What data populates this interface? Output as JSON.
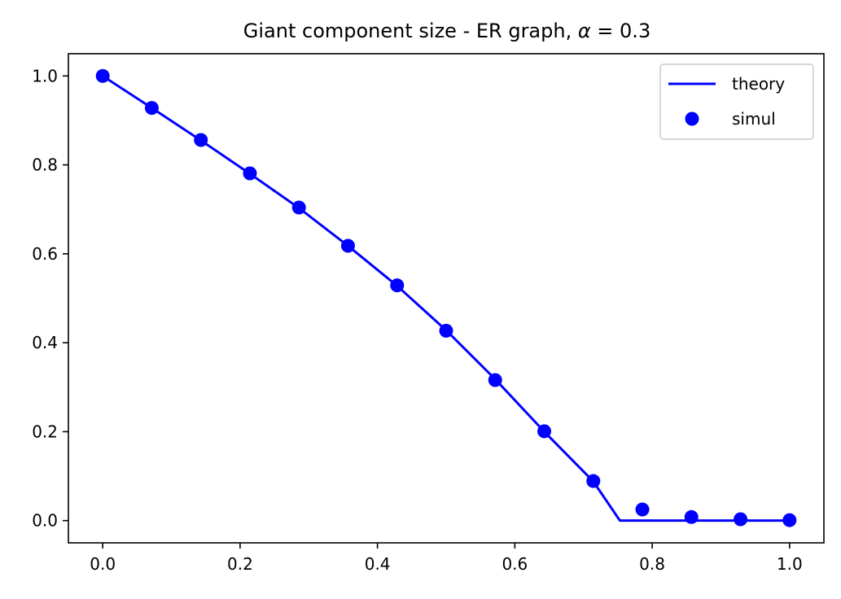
{
  "chart_data": {
    "type": "line+scatter",
    "title_prefix": "Giant component size - ER graph, ",
    "title_symbol": "α",
    "title_suffix": " = 0.3",
    "xlabel": "",
    "ylabel": "",
    "xlim": [
      -0.05,
      1.05
    ],
    "ylim": [
      -0.05,
      1.05
    ],
    "xticks": [
      "0.0",
      "0.2",
      "0.4",
      "0.6",
      "0.8",
      "1.0"
    ],
    "yticks": [
      "0.0",
      "0.2",
      "0.4",
      "0.6",
      "0.8",
      "1.0"
    ],
    "grid": false,
    "legend_position": "top-right",
    "color": "#0000ff",
    "series": [
      {
        "name": "theory",
        "kind": "line",
        "x": [
          0.0,
          0.0714,
          0.1429,
          0.2143,
          0.2857,
          0.3571,
          0.4286,
          0.5,
          0.5714,
          0.6429,
          0.7143,
          0.753,
          0.7857,
          0.8571,
          0.9286,
          1.0
        ],
        "y": [
          1.0,
          0.928,
          0.855,
          0.78,
          0.703,
          0.618,
          0.528,
          0.428,
          0.318,
          0.2,
          0.088,
          0.0,
          0.0,
          0.0,
          0.0,
          0.0
        ]
      },
      {
        "name": "simul",
        "kind": "scatter",
        "x": [
          0.0,
          0.0714,
          0.1429,
          0.2143,
          0.2857,
          0.3571,
          0.4286,
          0.5,
          0.5714,
          0.6429,
          0.7143,
          0.7857,
          0.8571,
          0.9286,
          1.0
        ],
        "y": [
          1.0,
          0.928,
          0.856,
          0.781,
          0.704,
          0.618,
          0.529,
          0.427,
          0.316,
          0.201,
          0.089,
          0.025,
          0.008,
          0.003,
          0.001
        ]
      }
    ]
  }
}
